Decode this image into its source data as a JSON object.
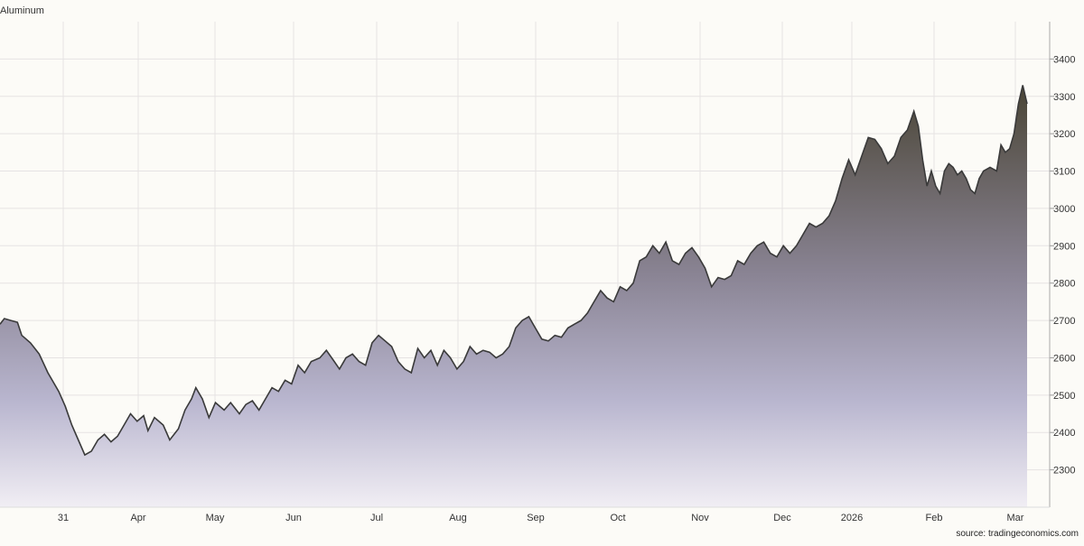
{
  "chart_data": {
    "type": "area",
    "title": "Aluminum",
    "source": "source: tradingeconomics.com",
    "xlabel": "",
    "ylabel": "",
    "ylim": [
      2200,
      3500
    ],
    "y_ticks": [
      2300,
      2400,
      2500,
      2600,
      2700,
      2800,
      2900,
      3000,
      3100,
      3200,
      3300,
      3400
    ],
    "x_tick_labels": [
      "31",
      "Apr",
      "May",
      "Jun",
      "Jul",
      "Aug",
      "Sep",
      "Oct",
      "Nov",
      "Dec",
      "2026",
      "Feb",
      "Mar"
    ],
    "grid": true,
    "legend": "none",
    "colors": {
      "line": "#3a3a3a",
      "fill_top": "#4a4536",
      "fill_bottom": "#f1eef4",
      "grid": "#e6e3e3"
    },
    "series": [
      {
        "points": [
          [
            0,
            2690
          ],
          [
            2,
            2705
          ],
          [
            5,
            2700
          ],
          [
            8,
            2695
          ],
          [
            10,
            2660
          ],
          [
            14,
            2640
          ],
          [
            18,
            2610
          ],
          [
            22,
            2560
          ],
          [
            27,
            2510
          ],
          [
            30,
            2470
          ],
          [
            33,
            2420
          ],
          [
            36,
            2380
          ],
          [
            39,
            2340
          ],
          [
            42,
            2350
          ],
          [
            45,
            2380
          ],
          [
            48,
            2395
          ],
          [
            51,
            2375
          ],
          [
            54,
            2390
          ],
          [
            57,
            2420
          ],
          [
            60,
            2450
          ],
          [
            63,
            2430
          ],
          [
            66,
            2445
          ],
          [
            68,
            2405
          ],
          [
            71,
            2440
          ],
          [
            75,
            2420
          ],
          [
            78,
            2380
          ],
          [
            82,
            2410
          ],
          [
            85,
            2460
          ],
          [
            88,
            2490
          ],
          [
            90,
            2520
          ],
          [
            93,
            2490
          ],
          [
            96,
            2440
          ],
          [
            99,
            2480
          ],
          [
            103,
            2460
          ],
          [
            106,
            2480
          ],
          [
            110,
            2450
          ],
          [
            113,
            2475
          ],
          [
            116,
            2485
          ],
          [
            119,
            2460
          ],
          [
            122,
            2490
          ],
          [
            125,
            2520
          ],
          [
            128,
            2510
          ],
          [
            131,
            2540
          ],
          [
            134,
            2530
          ],
          [
            137,
            2580
          ],
          [
            140,
            2560
          ],
          [
            143,
            2590
          ],
          [
            147,
            2600
          ],
          [
            150,
            2620
          ],
          [
            153,
            2595
          ],
          [
            156,
            2570
          ],
          [
            159,
            2600
          ],
          [
            162,
            2610
          ],
          [
            165,
            2590
          ],
          [
            168,
            2580
          ],
          [
            171,
            2640
          ],
          [
            174,
            2660
          ],
          [
            177,
            2645
          ],
          [
            180,
            2630
          ],
          [
            183,
            2590
          ],
          [
            186,
            2570
          ],
          [
            189,
            2560
          ],
          [
            192,
            2625
          ],
          [
            195,
            2600
          ],
          [
            198,
            2620
          ],
          [
            201,
            2580
          ],
          [
            204,
            2620
          ],
          [
            207,
            2600
          ],
          [
            210,
            2570
          ],
          [
            213,
            2590
          ],
          [
            216,
            2630
          ],
          [
            219,
            2610
          ],
          [
            222,
            2620
          ],
          [
            225,
            2615
          ],
          [
            228,
            2600
          ],
          [
            231,
            2610
          ],
          [
            234,
            2630
          ],
          [
            237,
            2680
          ],
          [
            240,
            2700
          ],
          [
            243,
            2710
          ],
          [
            246,
            2680
          ],
          [
            249,
            2650
          ],
          [
            252,
            2645
          ],
          [
            255,
            2660
          ],
          [
            258,
            2655
          ],
          [
            261,
            2680
          ],
          [
            264,
            2690
          ],
          [
            267,
            2700
          ],
          [
            270,
            2720
          ],
          [
            273,
            2750
          ],
          [
            276,
            2780
          ],
          [
            279,
            2760
          ],
          [
            282,
            2750
          ],
          [
            285,
            2790
          ],
          [
            288,
            2780
          ],
          [
            291,
            2800
          ],
          [
            294,
            2860
          ],
          [
            297,
            2870
          ],
          [
            300,
            2900
          ],
          [
            303,
            2880
          ],
          [
            306,
            2910
          ],
          [
            309,
            2860
          ],
          [
            312,
            2850
          ],
          [
            315,
            2880
          ],
          [
            318,
            2895
          ],
          [
            321,
            2870
          ],
          [
            324,
            2840
          ],
          [
            327,
            2790
          ],
          [
            330,
            2815
          ],
          [
            333,
            2810
          ],
          [
            336,
            2820
          ],
          [
            339,
            2860
          ],
          [
            342,
            2850
          ],
          [
            345,
            2880
          ],
          [
            348,
            2900
          ],
          [
            351,
            2910
          ],
          [
            354,
            2880
          ],
          [
            357,
            2870
          ],
          [
            360,
            2900
          ],
          [
            363,
            2880
          ],
          [
            366,
            2900
          ],
          [
            369,
            2930
          ],
          [
            372,
            2960
          ],
          [
            375,
            2950
          ],
          [
            378,
            2960
          ],
          [
            381,
            2980
          ],
          [
            384,
            3020
          ],
          [
            387,
            3080
          ],
          [
            390,
            3130
          ],
          [
            393,
            3090
          ],
          [
            396,
            3140
          ],
          [
            399,
            3190
          ],
          [
            402,
            3185
          ],
          [
            405,
            3160
          ],
          [
            408,
            3120
          ],
          [
            411,
            3140
          ],
          [
            414,
            3190
          ],
          [
            417,
            3210
          ],
          [
            420,
            3260
          ],
          [
            422,
            3220
          ],
          [
            424,
            3130
          ],
          [
            426,
            3060
          ],
          [
            428,
            3100
          ],
          [
            430,
            3060
          ],
          [
            432,
            3040
          ],
          [
            434,
            3100
          ],
          [
            436,
            3120
          ],
          [
            438,
            3110
          ],
          [
            440,
            3090
          ],
          [
            442,
            3100
          ],
          [
            444,
            3080
          ],
          [
            446,
            3050
          ],
          [
            448,
            3040
          ],
          [
            450,
            3080
          ],
          [
            452,
            3100
          ],
          [
            455,
            3110
          ],
          [
            458,
            3100
          ],
          [
            460,
            3170
          ],
          [
            462,
            3150
          ],
          [
            464,
            3160
          ],
          [
            466,
            3200
          ],
          [
            468,
            3280
          ],
          [
            470,
            3330
          ],
          [
            472,
            3280
          ]
        ]
      }
    ]
  }
}
